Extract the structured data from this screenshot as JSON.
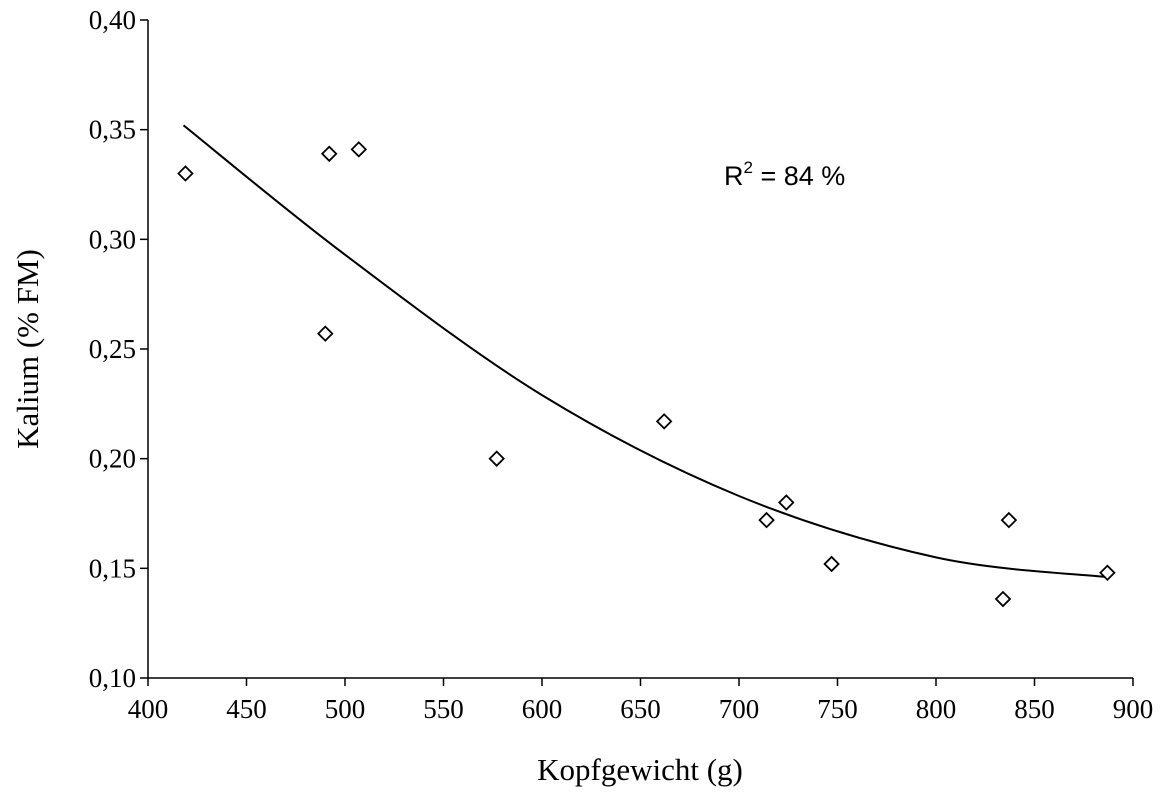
{
  "chart_data": {
    "type": "scatter",
    "xlabel": "Kopfgewicht (g)",
    "ylabel": "Kalium (% FM)",
    "xlim": [
      400,
      900
    ],
    "ylim": [
      0.1,
      0.4
    ],
    "xticks": [
      "400",
      "450",
      "500",
      "550",
      "600",
      "650",
      "700",
      "750",
      "800",
      "850",
      "900"
    ],
    "yticks": [
      "0,10",
      "0,15",
      "0,20",
      "0,25",
      "0,30",
      "0,35",
      "0,40"
    ],
    "grid": false,
    "series": [
      {
        "marker": "diamond",
        "points": [
          {
            "x": 419,
            "y": 0.33
          },
          {
            "x": 490,
            "y": 0.257
          },
          {
            "x": 492,
            "y": 0.339
          },
          {
            "x": 507,
            "y": 0.341
          },
          {
            "x": 577,
            "y": 0.2
          },
          {
            "x": 662,
            "y": 0.217
          },
          {
            "x": 714,
            "y": 0.172
          },
          {
            "x": 724,
            "y": 0.18
          },
          {
            "x": 747,
            "y": 0.152
          },
          {
            "x": 834,
            "y": 0.136
          },
          {
            "x": 837,
            "y": 0.172
          },
          {
            "x": 887,
            "y": 0.148
          }
        ]
      }
    ],
    "trendline": {
      "type": "polynomial",
      "x_range": [
        418,
        887
      ],
      "samples": [
        {
          "x": 418,
          "y": 0.352
        },
        {
          "x": 500,
          "y": 0.293
        },
        {
          "x": 600,
          "y": 0.229
        },
        {
          "x": 700,
          "y": 0.183
        },
        {
          "x": 800,
          "y": 0.155
        },
        {
          "x": 887,
          "y": 0.146
        }
      ]
    },
    "annotation": {
      "base": "R",
      "sup": "2",
      "rest": " = 84 %"
    }
  }
}
